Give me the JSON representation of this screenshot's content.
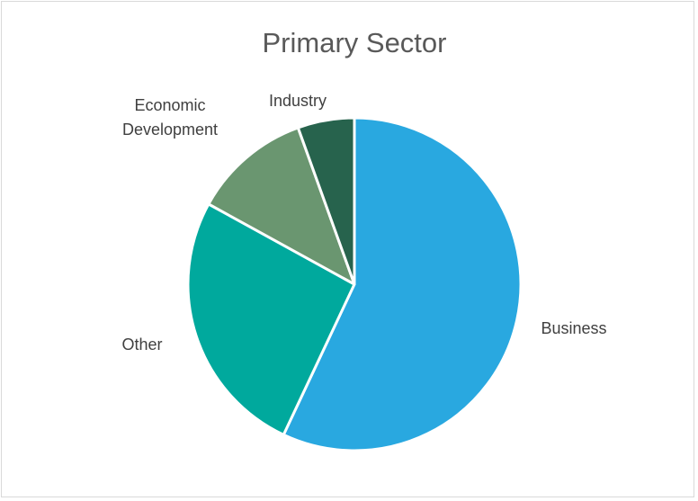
{
  "chart_data": {
    "type": "pie",
    "title": "Primary Sector",
    "slices": [
      {
        "label": "Business",
        "value": 57,
        "color": "#29A8E0",
        "label_lines": [
          "Business"
        ]
      },
      {
        "label": "Other",
        "value": 26,
        "color": "#00A99D",
        "label_lines": [
          "Other"
        ]
      },
      {
        "label": "Economic Development",
        "value": 11.5,
        "color": "#6A9670",
        "label_lines": [
          "Economic",
          "Development"
        ]
      },
      {
        "label": "Industry",
        "value": 5.5,
        "color": "#27634D",
        "label_lines": [
          "Industry"
        ]
      }
    ],
    "start_angle_deg": 0,
    "direction": "clockwise",
    "legend": "none",
    "data_labels": "category names outside slices"
  }
}
